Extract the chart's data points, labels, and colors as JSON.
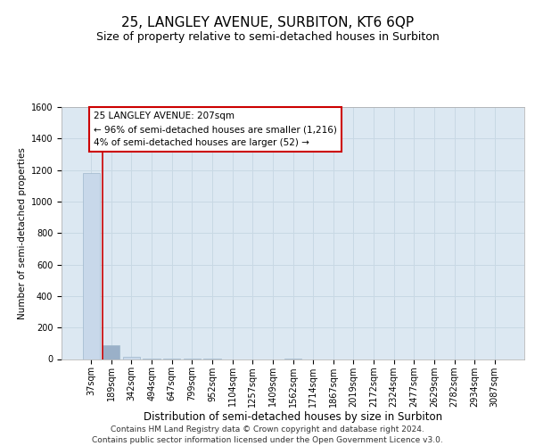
{
  "title": "25, LANGLEY AVENUE, SURBITON, KT6 6QP",
  "subtitle": "Size of property relative to semi-detached houses in Surbiton",
  "xlabel": "Distribution of semi-detached houses by size in Surbiton",
  "ylabel": "Number of semi-detached properties",
  "categories": [
    "37sqm",
    "189sqm",
    "342sqm",
    "494sqm",
    "647sqm",
    "799sqm",
    "952sqm",
    "1104sqm",
    "1257sqm",
    "1409sqm",
    "1562sqm",
    "1714sqm",
    "1867sqm",
    "2019sqm",
    "2172sqm",
    "2324sqm",
    "2477sqm",
    "2629sqm",
    "2782sqm",
    "2934sqm",
    "3087sqm"
  ],
  "values": [
    1180,
    90,
    12,
    3,
    2,
    1,
    1,
    0,
    0,
    0,
    1,
    0,
    0,
    0,
    0,
    0,
    0,
    0,
    0,
    0,
    0
  ],
  "bar_color": "#c8d8ea",
  "bar_edge_color": "#a0b8cc",
  "highlight_bar_index": 1,
  "highlight_bar_color": "#9ab0c8",
  "property_line_color": "#cc0000",
  "annotation_line1": "25 LANGLEY AVENUE: 207sqm",
  "annotation_line2": "← 96% of semi-detached houses are smaller (1,216)",
  "annotation_line3": "4% of semi-detached houses are larger (52) →",
  "annotation_box_facecolor": "#ffffff",
  "annotation_box_edgecolor": "#cc0000",
  "ylim": [
    0,
    1600
  ],
  "yticks": [
    0,
    200,
    400,
    600,
    800,
    1000,
    1200,
    1400,
    1600
  ],
  "grid_color": "#c8d8e4",
  "bg_color": "#dce8f2",
  "footer_text": "Contains HM Land Registry data © Crown copyright and database right 2024.\nContains public sector information licensed under the Open Government Licence v3.0.",
  "title_fontsize": 11,
  "subtitle_fontsize": 9,
  "ylabel_fontsize": 7.5,
  "xlabel_fontsize": 8.5,
  "tick_fontsize": 7,
  "annotation_fontsize": 7.5,
  "footer_fontsize": 6.5
}
